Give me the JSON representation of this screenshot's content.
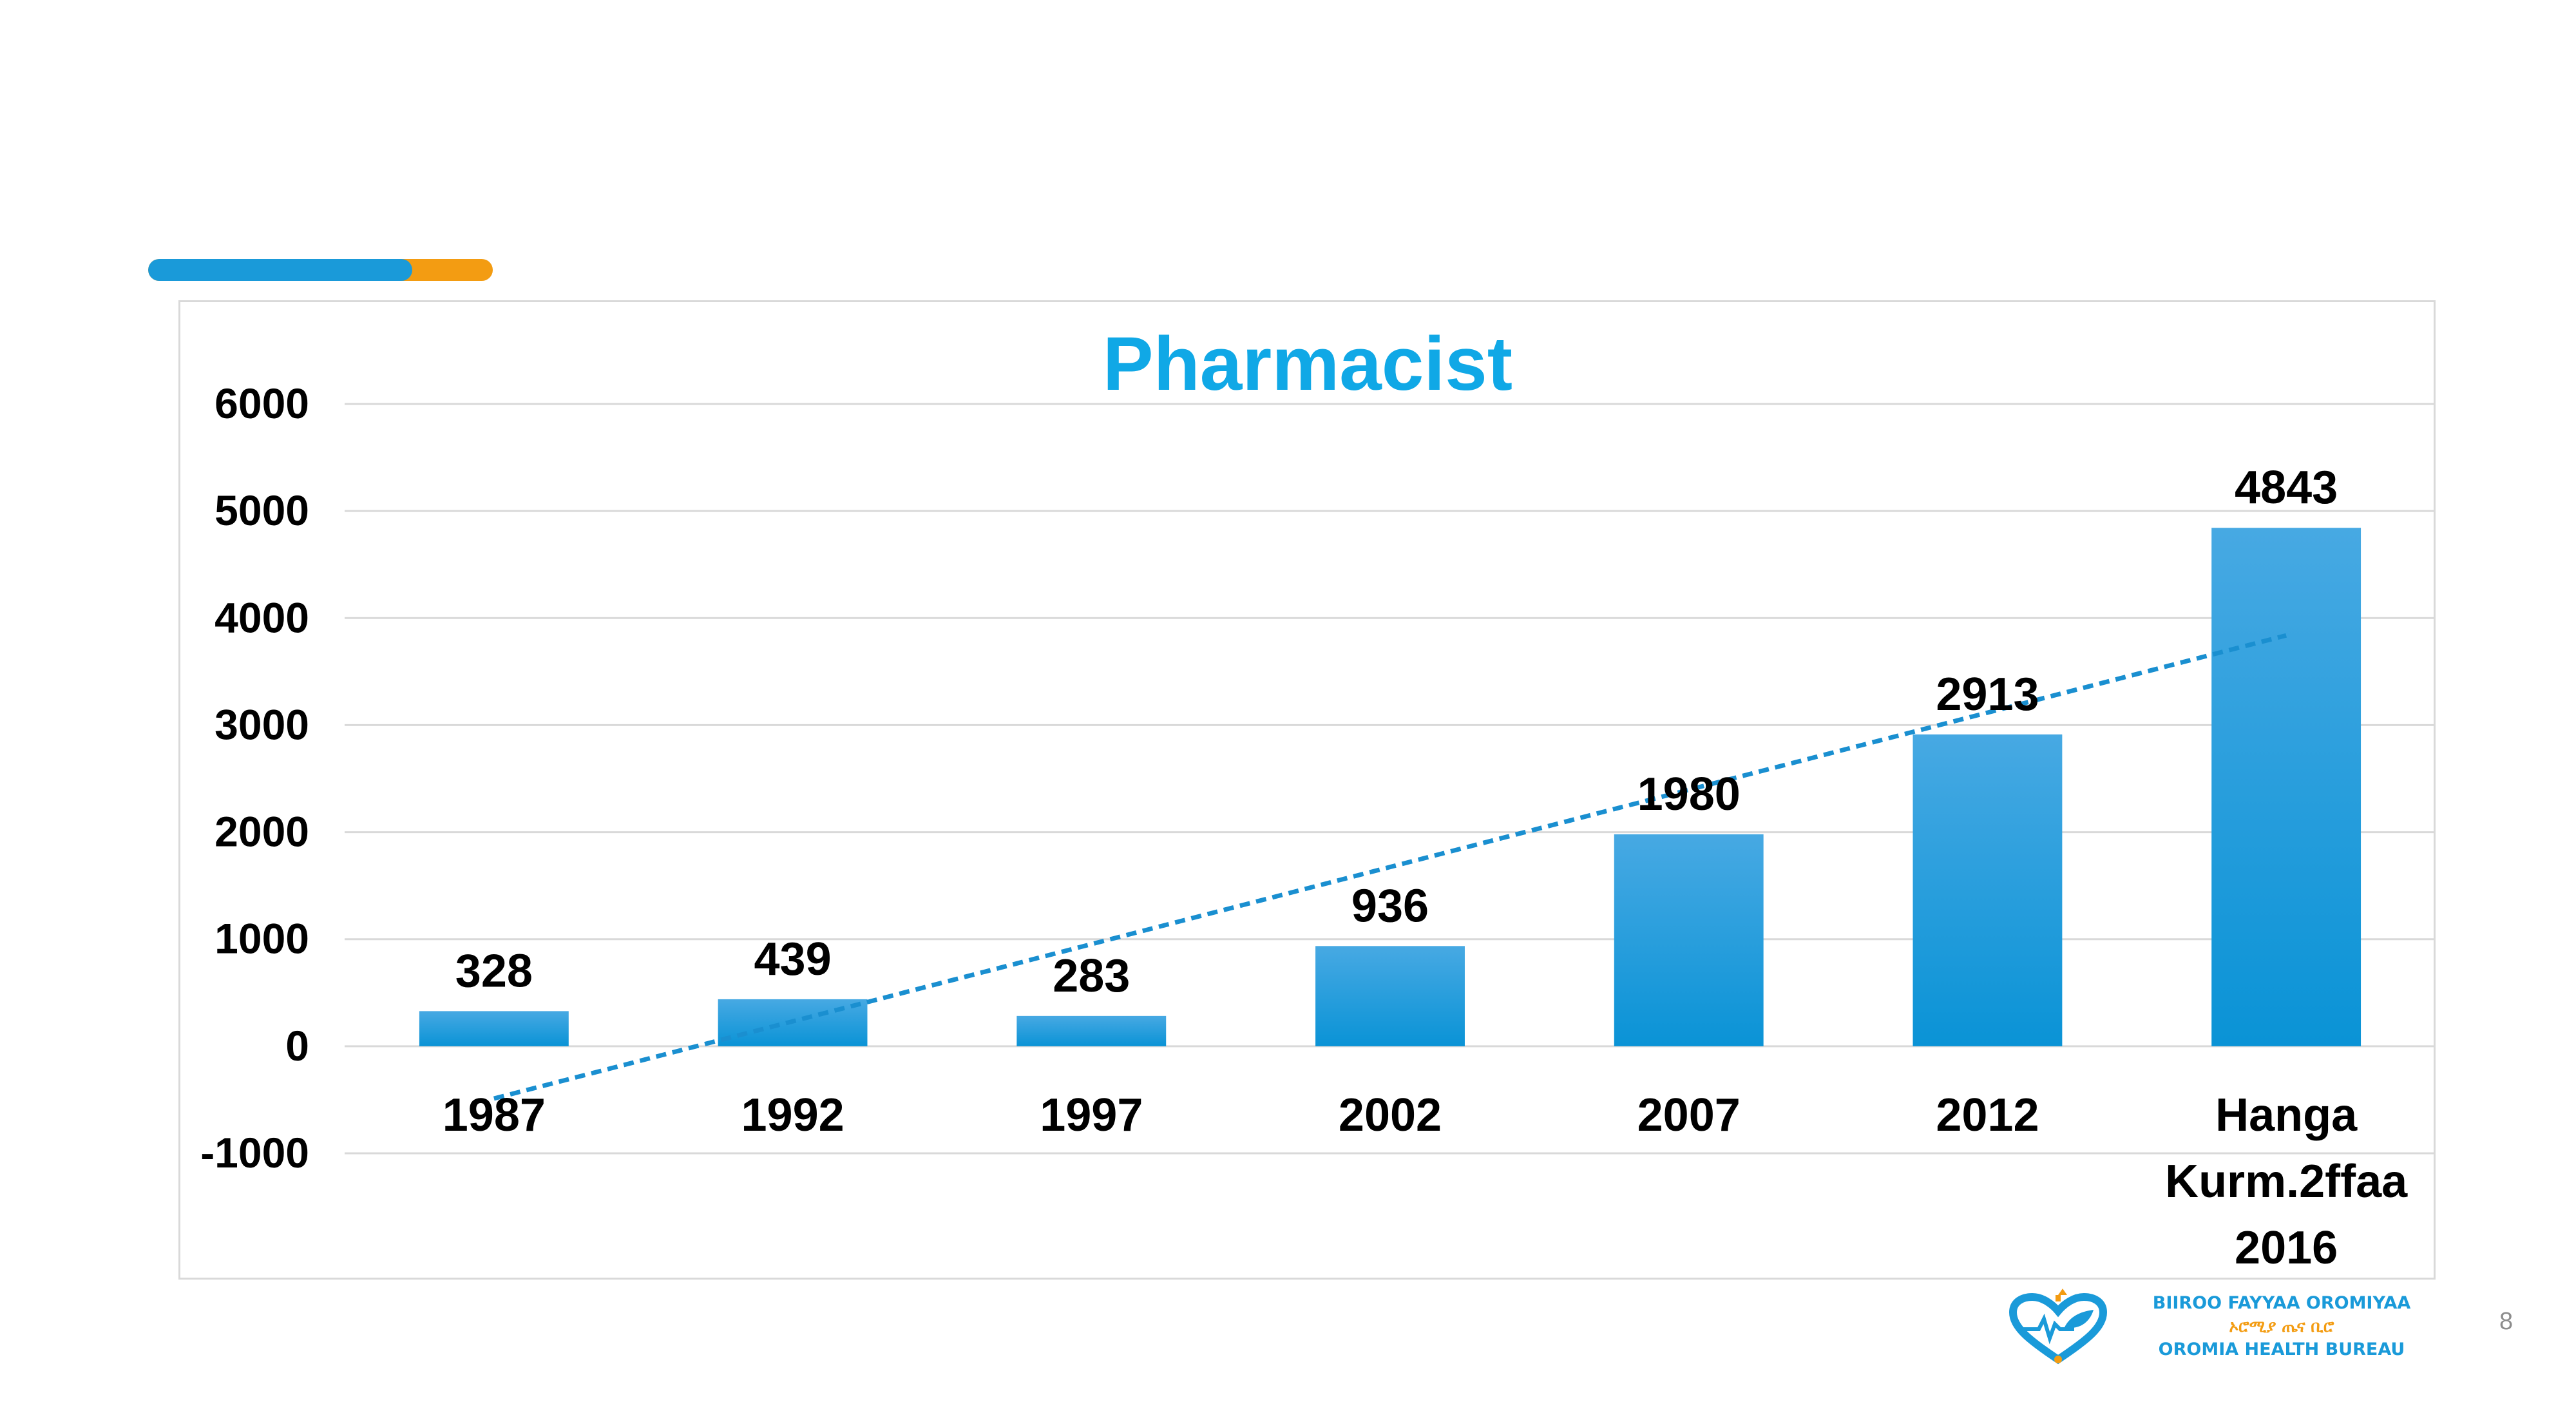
{
  "chart_data": {
    "type": "bar",
    "title": "Pharmacist",
    "categories": [
      "1987",
      "1992",
      "1997",
      "2002",
      "2007",
      "2012",
      "Hanga Kurm.2ffaa 2016"
    ],
    "category_lines": [
      [
        "1987"
      ],
      [
        "1992"
      ],
      [
        "1997"
      ],
      [
        "2002"
      ],
      [
        "2007"
      ],
      [
        "2012"
      ],
      [
        "Hanga",
        "Kurm.2ffaa",
        "2016"
      ]
    ],
    "values": [
      328,
      439,
      283,
      936,
      1980,
      2913,
      4843
    ],
    "data_labels": [
      "328",
      "439",
      "283",
      "936",
      "1980",
      "2913",
      "4843"
    ],
    "ylim": [
      -1000,
      6000
    ],
    "yticks": [
      6000,
      5000,
      4000,
      3000,
      2000,
      1000,
      0,
      -1000
    ],
    "ytick_labels": [
      "6000",
      "5000",
      "4000",
      "3000",
      "2000",
      "1000",
      "0",
      "-1000"
    ],
    "trendline": {
      "type": "linear",
      "style": "dashed"
    },
    "grid": true,
    "colors": {
      "bar_top": "#47a9e3",
      "bar_bottom": "#0a93d6",
      "trendline": "#1a8fd0",
      "title": "#10a8e6",
      "gridline": "#d9d9d9",
      "text": "#000000"
    }
  },
  "logo": {
    "line1": "BIIROO FAYYAA OROMIYAA",
    "line2": "ኦሮሚያ ጤና ቢሮ",
    "line3": "OROMIA HEALTH BUREAU"
  },
  "page_number": "8"
}
